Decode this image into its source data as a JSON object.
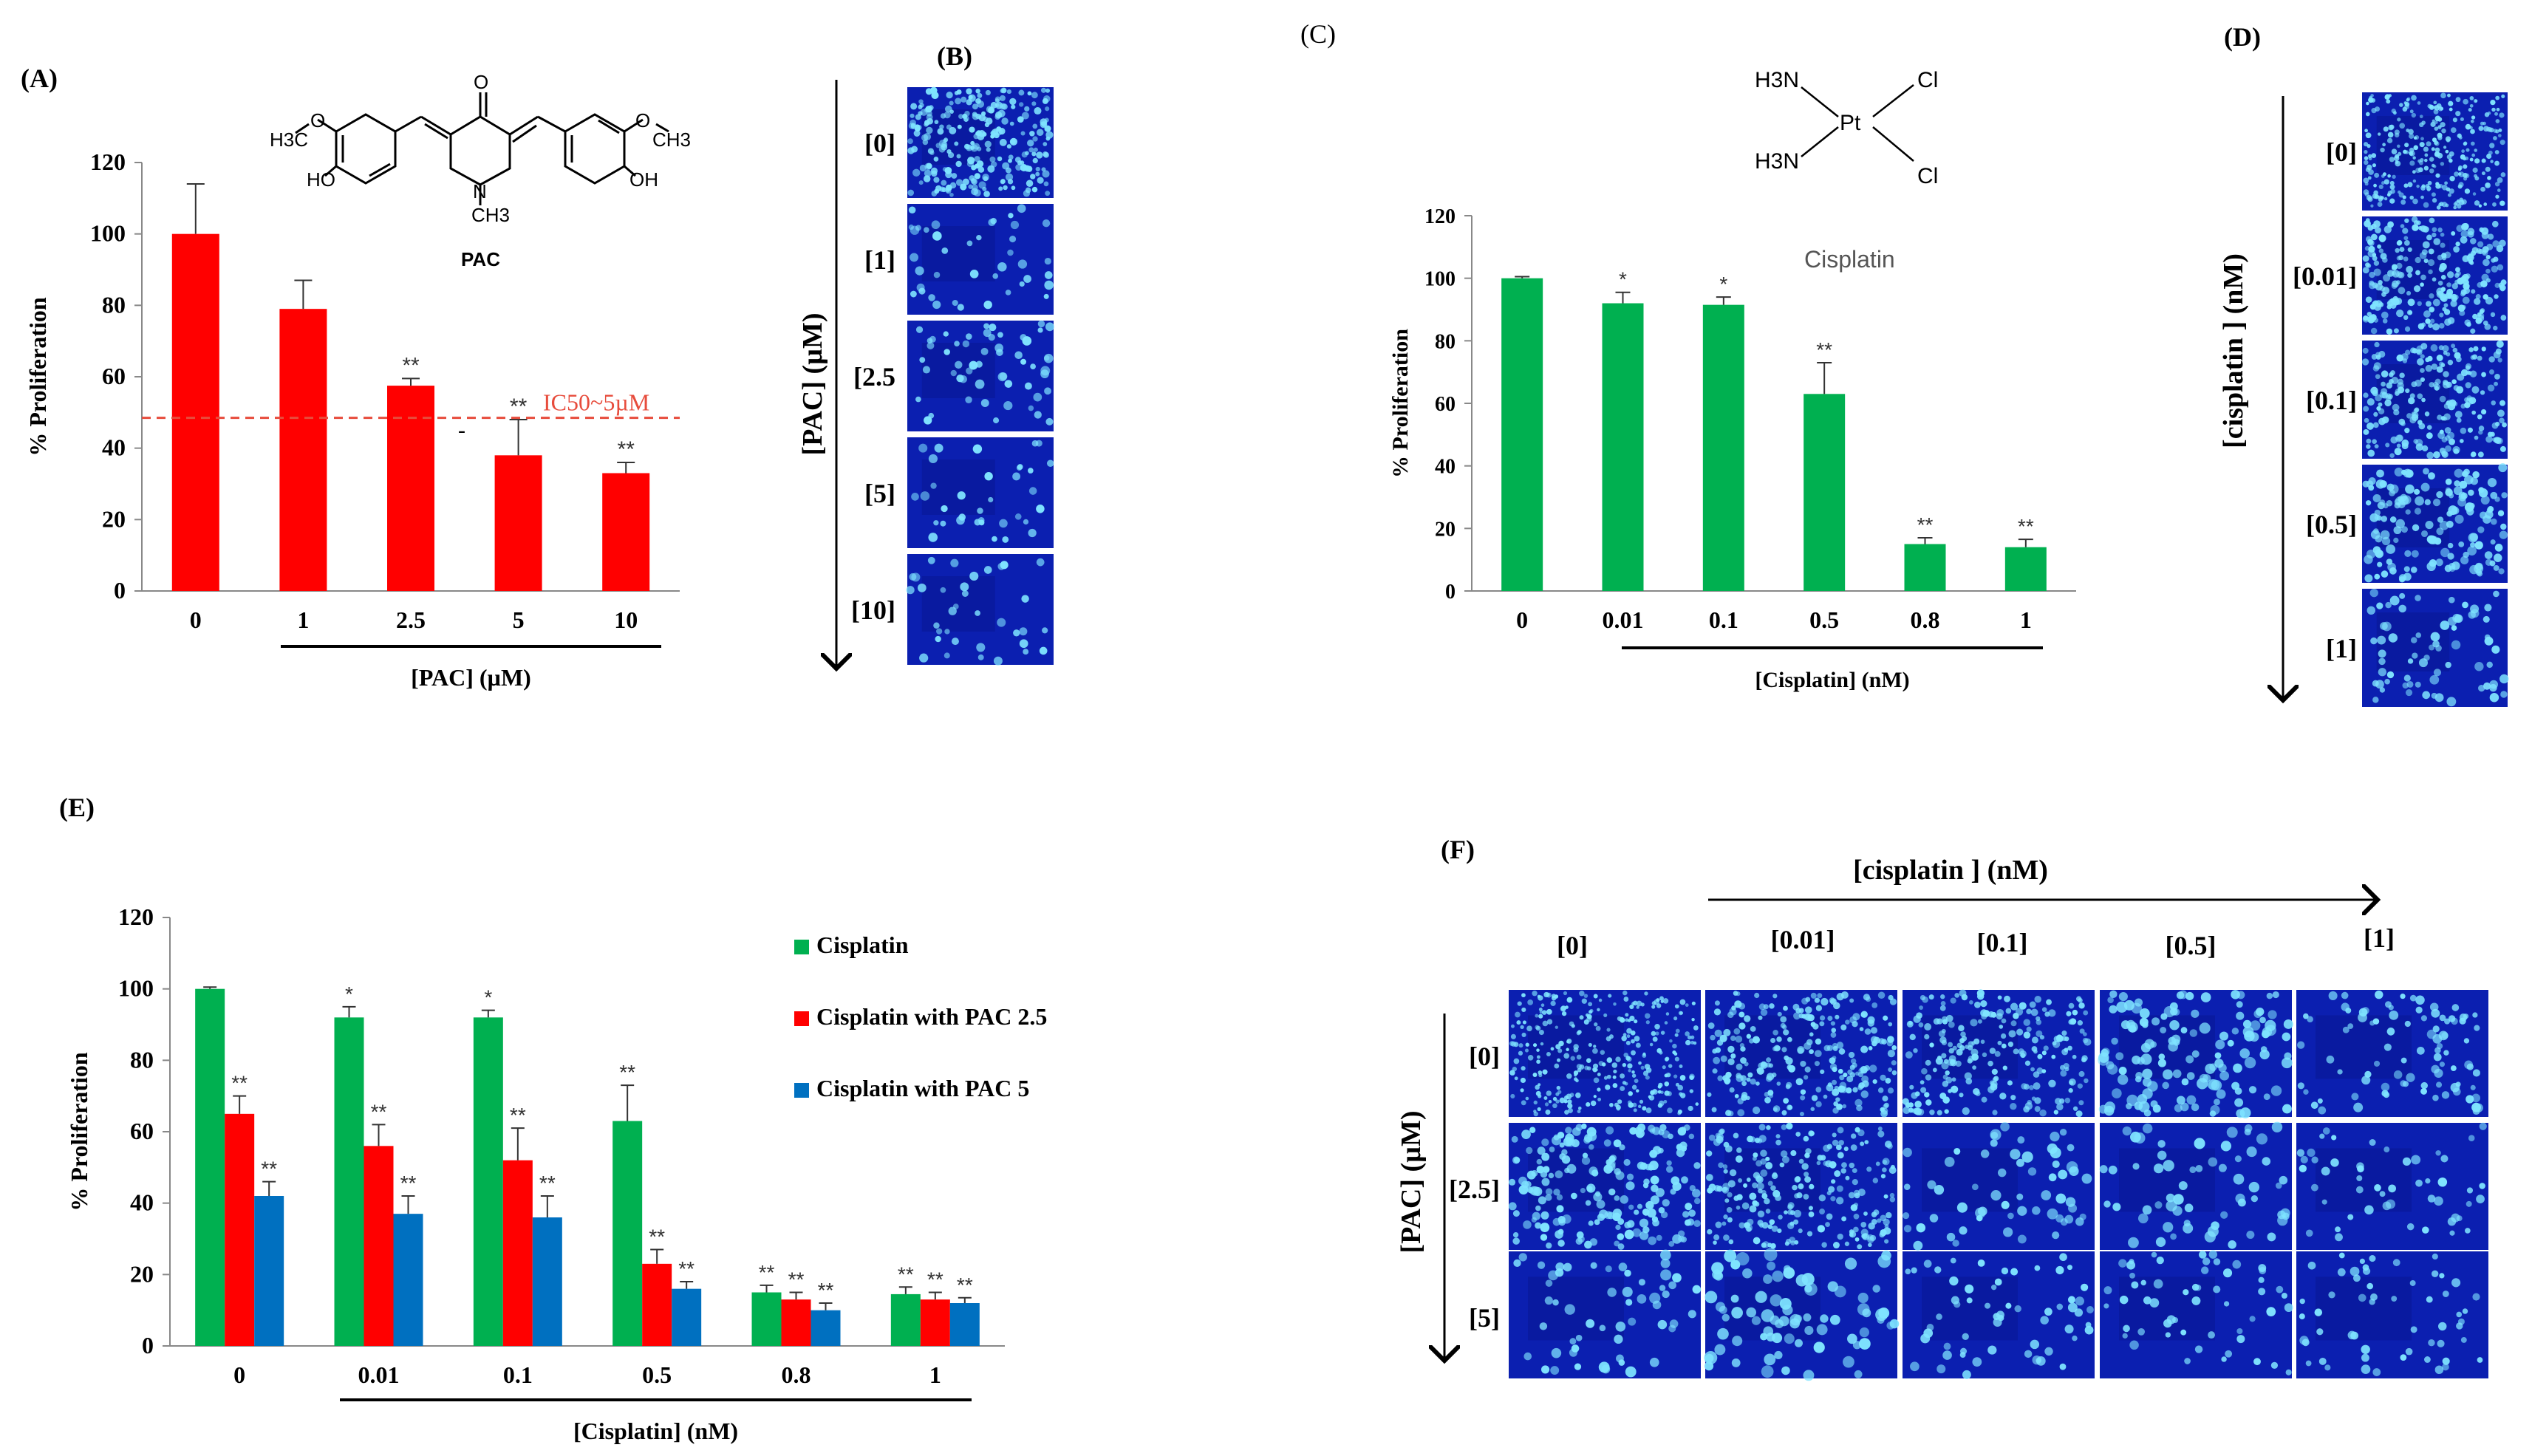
{
  "panels": {
    "A": "(A)",
    "B": "(B)",
    "C": "(C)",
    "D": "(D)",
    "E": "(E)",
    "F": "(F)"
  },
  "chart_data": [
    {
      "id": "A",
      "type": "bar",
      "title": "",
      "compound_label": "PAC",
      "categories": [
        "0",
        "1",
        "2.5",
        "5",
        "10"
      ],
      "values": [
        100,
        79,
        57.5,
        38,
        33
      ],
      "errors": [
        14,
        8,
        2,
        10,
        3
      ],
      "significance": [
        "",
        "",
        "**",
        "**",
        "**"
      ],
      "xlabel": "[PAC] (µM)",
      "ylabel": "% Proliferation",
      "ylim": [
        0,
        120
      ],
      "yticks": [
        "0",
        "20",
        "40",
        "60",
        "80",
        "100",
        "120"
      ],
      "annotation": "IC50~5µM",
      "annotation_value": 48.5,
      "stray_mark": "-",
      "color": "#ff0000"
    },
    {
      "id": "C",
      "type": "bar",
      "title": "Cisplatin",
      "categories": [
        "0",
        "0.01",
        "0.1",
        "0.5",
        "0.8",
        "1"
      ],
      "values": [
        100,
        92,
        91.5,
        63,
        15,
        14
      ],
      "errors": [
        0.5,
        3.5,
        2.5,
        10,
        2,
        2.5
      ],
      "significance": [
        "",
        "*",
        "*",
        "**",
        "**",
        "**"
      ],
      "xlabel": "[Cisplatin]  (nM)",
      "ylabel": "% Proliferation",
      "ylim": [
        0,
        120
      ],
      "yticks": [
        "0",
        "20",
        "40",
        "60",
        "80",
        "100",
        "120"
      ],
      "color": "#00b050"
    },
    {
      "id": "E",
      "type": "bar",
      "categories": [
        "0",
        "0.01",
        "0.1",
        "0.5",
        "0.8",
        "1"
      ],
      "series": [
        {
          "name": "Cisplatin",
          "color": "#00b050",
          "values": [
            100,
            92,
            92,
            63,
            15,
            14.5
          ],
          "errors": [
            0.5,
            3,
            2,
            10,
            2,
            2
          ],
          "significance": [
            "",
            "*",
            "*",
            "**",
            "**",
            "**"
          ]
        },
        {
          "name": "Cisplatin with PAC 2.5",
          "color": "#ff0000",
          "values": [
            65,
            56,
            52,
            23,
            13,
            13
          ],
          "errors": [
            5,
            6,
            9,
            4,
            2,
            2
          ],
          "significance": [
            "**",
            "**",
            "**",
            "**",
            "**",
            "**"
          ]
        },
        {
          "name": "Cisplatin with PAC 5",
          "color": "#0070c0",
          "values": [
            42,
            37,
            36,
            16,
            10,
            12
          ],
          "errors": [
            4,
            5,
            6,
            2,
            2,
            1.5
          ],
          "significance": [
            "**",
            "**",
            "**",
            "**",
            "**",
            "**"
          ]
        }
      ],
      "xlabel": "[Cisplatin]  (nM)",
      "ylabel": "% Proliferation",
      "ylim": [
        0,
        120
      ],
      "yticks": [
        "0",
        "20",
        "40",
        "60",
        "80",
        "100",
        "120"
      ],
      "legend": "right"
    }
  ],
  "chem_A": {
    "h3co": "H3C",
    "o": "O",
    "ch3": "CH3",
    "ho": "HO",
    "oh": "OH",
    "n": "N",
    "c": "C"
  },
  "chem_C": {
    "h3n_top": "H3N",
    "h3n_bottom": "H3N",
    "pt": "Pt",
    "cl_top": "Cl",
    "cl_bottom": "Cl"
  },
  "micro_B": {
    "axis_label": "[PAC] (µM)",
    "rows": [
      "[0]",
      "[1]",
      "[2.5",
      "[5]",
      "[10]"
    ]
  },
  "micro_D": {
    "axis_label": "[cisplatin ] (nM)",
    "rows": [
      "[0]",
      "[0.01]",
      "[0.1]",
      "[0.5]",
      "[1]"
    ]
  },
  "micro_F": {
    "col_axis_label": "[cisplatin ] (nM)",
    "row_axis_label": "[PAC] (µM)",
    "cols": [
      "[0]",
      "[0.01]",
      "[0.1]",
      "[0.5]",
      "[1]"
    ],
    "rows": [
      "[0]",
      "[2.5]",
      "[5]"
    ]
  },
  "colors": {
    "micro_bg": "#0b1fb0",
    "micro_bg_dark": "#061283",
    "cell": "#7fe4ff"
  }
}
